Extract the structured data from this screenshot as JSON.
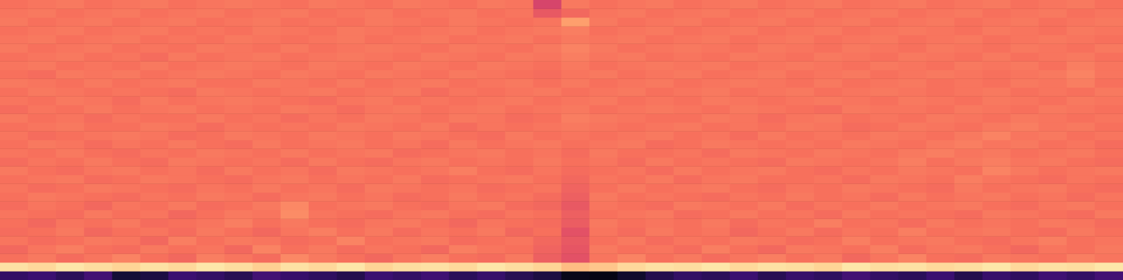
{
  "chart_data": {
    "type": "heatmap",
    "color": "magma",
    "tick_labels": false,
    "grid": false,
    "zlim": [
      0,
      100
    ],
    "z": [
      [
        18,
        20,
        16,
        22,
        10,
        12,
        20,
        18,
        15,
        22,
        19,
        17,
        14,
        20,
        18,
        21,
        16,
        19,
        15,
        12,
        4,
        3,
        8,
        14,
        18,
        16,
        20,
        15,
        19,
        17,
        22,
        18,
        16,
        20,
        14,
        19,
        17,
        21,
        18,
        22
      ],
      [
        94,
        92,
        95,
        93,
        91,
        94,
        92,
        95,
        93,
        90,
        94,
        92,
        95,
        91,
        93,
        94,
        92,
        95,
        93,
        91,
        86,
        88,
        92,
        94,
        93,
        95,
        92,
        94,
        93,
        91,
        95,
        93,
        94,
        92,
        93,
        95,
        92,
        94,
        93,
        95
      ],
      [
        70,
        72,
        69,
        71,
        74,
        70,
        68,
        73,
        71,
        69,
        75,
        72,
        70,
        68,
        71,
        73,
        70,
        69,
        72,
        66,
        62,
        71,
        74,
        70,
        72,
        69,
        71,
        73,
        70,
        72,
        68,
        71,
        74,
        70,
        69,
        72,
        71,
        70,
        73,
        71
      ],
      [
        68,
        71,
        73,
        70,
        69,
        72,
        70,
        71,
        68,
        74,
        70,
        72,
        69,
        71,
        70,
        68,
        73,
        71,
        70,
        67,
        63,
        72,
        70,
        71,
        69,
        73,
        70,
        68,
        72,
        71,
        70,
        73,
        69,
        71,
        72,
        70,
        68,
        71,
        70,
        72
      ],
      [
        71,
        69,
        70,
        72,
        71,
        68,
        73,
        70,
        72,
        71,
        69,
        70,
        74,
        70,
        71,
        72,
        69,
        70,
        71,
        68,
        64,
        70,
        72,
        69,
        71,
        70,
        72,
        71,
        69,
        70,
        73,
        70,
        71,
        72,
        70,
        69,
        71,
        73,
        70,
        71
      ],
      [
        69,
        70,
        72,
        68,
        70,
        71,
        69,
        72,
        70,
        68,
        71,
        73,
        70,
        72,
        69,
        71,
        70,
        72,
        68,
        70,
        62,
        71,
        69,
        72,
        70,
        71,
        68,
        70,
        72,
        69,
        71,
        70,
        73,
        70,
        71,
        72,
        70,
        69,
        72,
        70
      ],
      [
        70,
        68,
        71,
        70,
        72,
        69,
        70,
        71,
        73,
        70,
        72,
        70,
        69,
        71,
        72,
        70,
        68,
        71,
        70,
        69,
        65,
        72,
        70,
        71,
        70,
        72,
        69,
        71,
        70,
        73,
        70,
        71,
        69,
        72,
        70,
        71,
        70,
        72,
        71,
        69
      ],
      [
        71,
        70,
        69,
        72,
        70,
        71,
        68,
        70,
        72,
        71,
        76,
        71,
        70,
        69,
        71,
        72,
        70,
        69,
        71,
        70,
        66,
        70,
        71,
        72,
        69,
        70,
        72,
        70,
        71,
        69,
        72,
        70,
        71,
        70,
        69,
        72,
        71,
        70,
        69,
        72
      ],
      [
        69,
        71,
        70,
        68,
        71,
        70,
        72,
        69,
        70,
        72,
        75,
        70,
        71,
        72,
        70,
        69,
        71,
        72,
        69,
        68,
        64,
        71,
        70,
        69,
        72,
        71,
        70,
        72,
        69,
        71,
        70,
        72,
        70,
        71,
        72,
        70,
        69,
        71,
        72,
        70
      ],
      [
        70,
        72,
        71,
        70,
        69,
        71,
        70,
        72,
        71,
        69,
        71,
        72,
        70,
        71,
        69,
        70,
        72,
        70,
        71,
        69,
        66,
        72,
        70,
        71,
        70,
        69,
        71,
        70,
        72,
        70,
        71,
        69,
        72,
        70,
        71,
        72,
        70,
        71,
        69,
        71
      ],
      [
        71,
        69,
        70,
        72,
        71,
        70,
        69,
        71,
        70,
        72,
        70,
        71,
        69,
        72,
        71,
        70,
        71,
        69,
        70,
        71,
        67,
        70,
        72,
        70,
        71,
        72,
        70,
        69,
        71,
        70,
        72,
        71,
        70,
        69,
        72,
        70,
        71,
        72,
        70,
        69
      ],
      [
        70,
        71,
        72,
        69,
        70,
        72,
        71,
        70,
        69,
        71,
        72,
        70,
        71,
        70,
        72,
        69,
        70,
        71,
        72,
        70,
        68,
        71,
        70,
        72,
        69,
        71,
        72,
        70,
        70,
        71,
        69,
        72,
        71,
        70,
        73,
        71,
        70,
        69,
        71,
        70
      ],
      [
        72,
        70,
        69,
        71,
        72,
        70,
        71,
        69,
        72,
        70,
        71,
        69,
        72,
        71,
        70,
        71,
        73,
        70,
        69,
        71,
        69,
        70,
        71,
        69,
        72,
        70,
        71,
        72,
        70,
        69,
        71,
        70,
        72,
        71,
        70,
        74,
        72,
        70,
        71,
        72
      ],
      [
        69,
        71,
        70,
        72,
        70,
        69,
        72,
        71,
        70,
        71,
        69,
        72,
        70,
        69,
        71,
        72,
        70,
        71,
        70,
        72,
        70,
        71,
        69,
        72,
        70,
        71,
        70,
        69,
        72,
        71,
        70,
        71,
        73,
        70,
        72,
        73,
        71,
        72,
        70,
        69
      ],
      [
        71,
        70,
        72,
        70,
        69,
        71,
        70,
        72,
        71,
        70,
        72,
        70,
        71,
        72,
        69,
        70,
        71,
        72,
        70,
        71,
        69,
        72,
        70,
        70,
        71,
        69,
        72,
        71,
        70,
        72,
        71,
        70,
        72,
        73,
        71,
        72,
        70,
        71,
        72,
        70
      ],
      [
        70,
        72,
        71,
        69,
        71,
        70,
        72,
        70,
        69,
        72,
        70,
        71,
        72,
        70,
        71,
        69,
        72,
        70,
        71,
        72,
        70,
        71,
        72,
        69,
        70,
        72,
        71,
        70,
        71,
        70,
        72,
        71,
        70,
        72,
        73,
        71,
        72,
        70,
        71,
        69
      ],
      [
        71,
        69,
        70,
        71,
        72,
        71,
        69,
        70,
        72,
        71,
        70,
        72,
        71,
        70,
        72,
        71,
        70,
        69,
        72,
        70,
        71,
        70,
        71,
        72,
        70,
        71,
        69,
        72,
        70,
        71,
        70,
        72,
        71,
        70,
        72,
        74,
        71,
        72,
        70,
        71
      ],
      [
        70,
        71,
        72,
        70,
        70,
        72,
        71,
        69,
        71,
        70,
        71,
        70,
        72,
        71,
        70,
        72,
        69,
        71,
        70,
        71,
        72,
        71,
        70,
        71,
        72,
        70,
        71,
        70,
        72,
        71,
        69,
        70,
        72,
        71,
        70,
        72,
        73,
        71,
        72,
        70
      ],
      [
        72,
        70,
        71,
        69,
        71,
        70,
        70,
        72,
        70,
        71,
        69,
        71,
        70,
        72,
        71,
        70,
        72,
        71,
        69,
        70,
        73,
        72,
        71,
        70,
        70,
        72,
        71,
        69,
        71,
        72,
        70,
        71,
        70,
        72,
        71,
        70,
        72,
        71,
        70,
        71
      ],
      [
        69,
        71,
        70,
        72,
        70,
        71,
        72,
        70,
        71,
        70,
        72,
        71,
        69,
        71,
        72,
        70,
        71,
        72,
        70,
        71,
        72,
        70,
        71,
        72,
        71,
        70,
        72,
        71,
        70,
        69,
        72,
        71,
        71,
        70,
        72,
        71,
        70,
        72,
        71,
        70
      ],
      [
        71,
        70,
        72,
        71,
        69,
        72,
        70,
        71,
        72,
        71,
        70,
        69,
        71,
        72,
        70,
        71,
        70,
        71,
        72,
        70,
        71,
        72,
        70,
        71,
        70,
        72,
        71,
        70,
        71,
        72,
        71,
        70,
        72,
        71,
        70,
        72,
        71,
        70,
        72,
        71
      ],
      [
        70,
        72,
        71,
        70,
        71,
        70,
        69,
        72,
        71,
        70,
        71,
        72,
        70,
        71,
        72,
        69,
        71,
        70,
        71,
        72,
        70,
        71,
        72,
        70,
        71,
        72,
        70,
        71,
        72,
        70,
        71,
        72,
        71,
        70,
        71,
        72,
        70,
        71,
        70,
        72
      ],
      [
        72,
        71,
        70,
        72,
        70,
        71,
        72,
        70,
        70,
        72,
        71,
        70,
        72,
        70,
        71,
        72,
        70,
        71,
        72,
        70,
        72,
        70,
        71,
        72,
        70,
        71,
        72,
        71,
        70,
        72,
        70,
        71,
        72,
        70,
        71,
        70,
        72,
        71,
        73,
        70
      ],
      [
        70,
        69,
        72,
        71,
        72,
        70,
        71,
        72,
        71,
        70,
        72,
        71,
        70,
        72,
        71,
        70,
        72,
        71,
        70,
        69,
        71,
        72,
        70,
        71,
        72,
        70,
        71,
        72,
        70,
        71,
        72,
        70,
        71,
        72,
        71,
        70,
        71,
        72,
        74,
        71
      ],
      [
        71,
        72,
        70,
        71,
        70,
        72,
        70,
        71,
        72,
        71,
        70,
        72,
        71,
        70,
        72,
        71,
        70,
        72,
        71,
        70,
        72,
        70,
        71,
        72,
        71,
        72,
        70,
        71,
        72,
        71,
        70,
        72,
        71,
        70,
        72,
        71,
        72,
        70,
        73,
        71
      ],
      [
        70,
        71,
        72,
        70,
        71,
        69,
        72,
        70,
        71,
        72,
        70,
        71,
        72,
        71,
        70,
        72,
        71,
        70,
        72,
        71,
        73,
        71,
        72,
        70,
        71,
        70,
        72,
        71,
        70,
        72,
        71,
        70,
        72,
        71,
        70,
        72,
        70,
        71,
        72,
        70
      ],
      [
        72,
        70,
        71,
        72,
        70,
        71,
        70,
        72,
        71,
        70,
        72,
        70,
        71,
        72,
        71,
        70,
        72,
        71,
        70,
        72,
        74,
        72,
        70,
        71,
        72,
        71,
        70,
        72,
        71,
        70,
        72,
        71,
        70,
        72,
        71,
        70,
        72,
        71,
        70,
        72
      ],
      [
        71,
        72,
        70,
        71,
        72,
        70,
        71,
        70,
        72,
        71,
        70,
        71,
        72,
        70,
        71,
        72,
        70,
        71,
        72,
        70,
        72,
        71,
        72,
        70,
        71,
        72,
        70,
        71,
        72,
        70,
        71,
        72,
        70,
        71,
        72,
        70,
        71,
        72,
        71,
        70
      ],
      [
        70,
        71,
        72,
        70,
        71,
        72,
        70,
        71,
        70,
        72,
        71,
        70,
        72,
        71,
        70,
        71,
        72,
        70,
        71,
        72,
        73,
        70,
        71,
        72,
        70,
        71,
        72,
        70,
        71,
        72,
        70,
        71,
        72,
        71,
        70,
        72,
        71,
        70,
        72,
        71
      ],
      [
        72,
        70,
        71,
        72,
        70,
        71,
        72,
        70,
        71,
        72,
        70,
        71,
        70,
        72,
        71,
        70,
        72,
        71,
        70,
        71,
        80,
        72,
        70,
        71,
        72,
        70,
        71,
        72,
        70,
        71,
        72,
        70,
        71,
        72,
        70,
        71,
        72,
        70,
        71,
        72
      ],
      [
        71,
        72,
        70,
        71,
        72,
        70,
        71,
        72,
        70,
        71,
        72,
        70,
        71,
        72,
        70,
        71,
        72,
        70,
        71,
        64,
        68,
        71,
        72,
        70,
        71,
        72,
        70,
        71,
        72,
        70,
        71,
        72,
        70,
        71,
        72,
        70,
        71,
        72,
        70,
        71
      ],
      [
        70,
        71,
        72,
        70,
        71,
        72,
        70,
        71,
        72,
        71,
        70,
        72,
        71,
        70,
        72,
        71,
        70,
        72,
        71,
        58,
        72,
        70,
        71,
        72,
        70,
        71,
        72,
        70,
        71,
        72,
        70,
        71,
        72,
        70,
        71,
        72,
        70,
        71,
        72,
        70
      ]
    ]
  }
}
